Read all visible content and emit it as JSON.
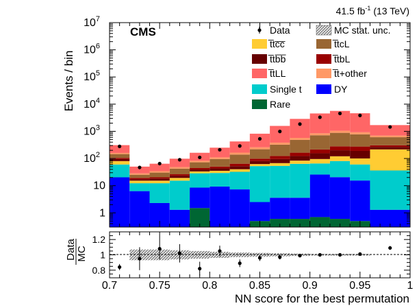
{
  "header": {
    "lumi": "41.5 fb",
    "lumi_exp": "-1",
    "energy": "(13 TeV)",
    "experiment": "CMS"
  },
  "legend": {
    "data": "Data",
    "mcstat": "MC stat. unc."
  },
  "chart_data": [
    {
      "type": "bar",
      "stacked": true,
      "title": "",
      "xlabel": "NN score for the best permutation",
      "ylabel": "Events / bin",
      "yscale": "log",
      "ylim": [
        0.3,
        10000000
      ],
      "xlim": [
        0.7,
        1.0
      ],
      "bin_edges": [
        0.7,
        0.72,
        0.74,
        0.76,
        0.78,
        0.8,
        0.82,
        0.84,
        0.86,
        0.88,
        0.9,
        0.92,
        0.94,
        0.96,
        1.0
      ],
      "y_tick_labels": [
        "1",
        "10",
        "10^2",
        "10^3",
        "10^4",
        "10^5",
        "10^6",
        "10^7"
      ],
      "series": [
        {
          "name": "Rare",
          "color": "#006633",
          "values": [
            0.3,
            0.3,
            0.3,
            0.3,
            1.5,
            0.3,
            0.3,
            0.5,
            0.6,
            0.6,
            0.7,
            0.6,
            0.5,
            0.3
          ]
        },
        {
          "name": "DY",
          "color": "#0000ff",
          "values": [
            20,
            6,
            2,
            1,
            7,
            9,
            7,
            2,
            3,
            3,
            25,
            20,
            15,
            1
          ]
        },
        {
          "name": "Single t",
          "color": "#00cccc",
          "values": [
            40,
            6,
            10,
            14,
            20,
            20,
            25,
            50,
            50,
            60,
            40,
            60,
            45,
            35
          ]
        },
        {
          "name": "t̅tc̅c̅",
          "color": "#ffcc33",
          "values": [
            20,
            3,
            3,
            4,
            5,
            6,
            8,
            10,
            14,
            20,
            30,
            40,
            40,
            180
          ]
        },
        {
          "name": "t̅tb̅b̅",
          "color": "#660000",
          "values": [
            15,
            2,
            3,
            4,
            6,
            8,
            12,
            18,
            28,
            40,
            60,
            80,
            90,
            50
          ]
        },
        {
          "name": "t̅tbL",
          "color": "#990000",
          "values": [
            10,
            2,
            2,
            3,
            5,
            7,
            12,
            18,
            28,
            40,
            60,
            80,
            85,
            40
          ]
        },
        {
          "name": "t̅tcL",
          "color": "#996633",
          "values": [
            40,
            6,
            10,
            16,
            28,
            45,
            75,
            120,
            200,
            320,
            500,
            600,
            500,
            300
          ]
        },
        {
          "name": "t̅t+other",
          "color": "#ff9966",
          "values": [
            15,
            3,
            4,
            6,
            10,
            15,
            25,
            40,
            60,
            90,
            130,
            170,
            150,
            90
          ]
        },
        {
          "name": "t̅tLL",
          "color": "#ff6666",
          "values": [
            150,
            22,
            30,
            50,
            80,
            140,
            260,
            560,
            1200,
            2300,
            3700,
            4600,
            3700,
            1000
          ]
        }
      ],
      "data_points": {
        "name": "Data",
        "x": [
          0.71,
          0.73,
          0.75,
          0.77,
          0.79,
          0.81,
          0.83,
          0.85,
          0.87,
          0.89,
          0.91,
          0.93,
          0.95,
          0.98
        ],
        "y": [
          280,
          47,
          65,
          90,
          110,
          210,
          290,
          530,
          990,
          1850,
          3300,
          4550,
          3850,
          1450
        ]
      }
    },
    {
      "type": "scatter",
      "xlabel": "NN score for the best permutation",
      "ylabel": "Data / MC",
      "ylim": [
        0.7,
        1.3
      ],
      "xlim": [
        0.7,
        1.0
      ],
      "y_ticks": [
        "0.8",
        "1",
        "1.2"
      ],
      "x_ticks": [
        "0.7",
        "0.75",
        "0.8",
        "0.85",
        "0.9",
        "0.95",
        "1"
      ],
      "x": [
        0.71,
        0.73,
        0.75,
        0.77,
        0.79,
        0.81,
        0.83,
        0.85,
        0.87,
        0.89,
        0.91,
        0.93,
        0.95,
        0.98
      ],
      "y": [
        0.84,
        0.95,
        1.08,
        1.02,
        0.82,
        1.05,
        0.89,
        0.96,
        0.97,
        0.99,
        1.0,
        1.0,
        1.01,
        1.09
      ],
      "err": [
        0.04,
        0.15,
        0.14,
        0.12,
        0.09,
        0.07,
        0.05,
        0.04,
        0.03,
        0.02,
        0.015,
        0.015,
        0.015,
        0.025
      ],
      "mc_stat_unc": [
        0.0,
        0.07,
        0.07,
        0.06,
        0.05,
        0.04,
        0.03,
        0.025,
        0.02,
        0.015,
        0.01,
        0.01,
        0.01,
        0.0
      ]
    }
  ]
}
